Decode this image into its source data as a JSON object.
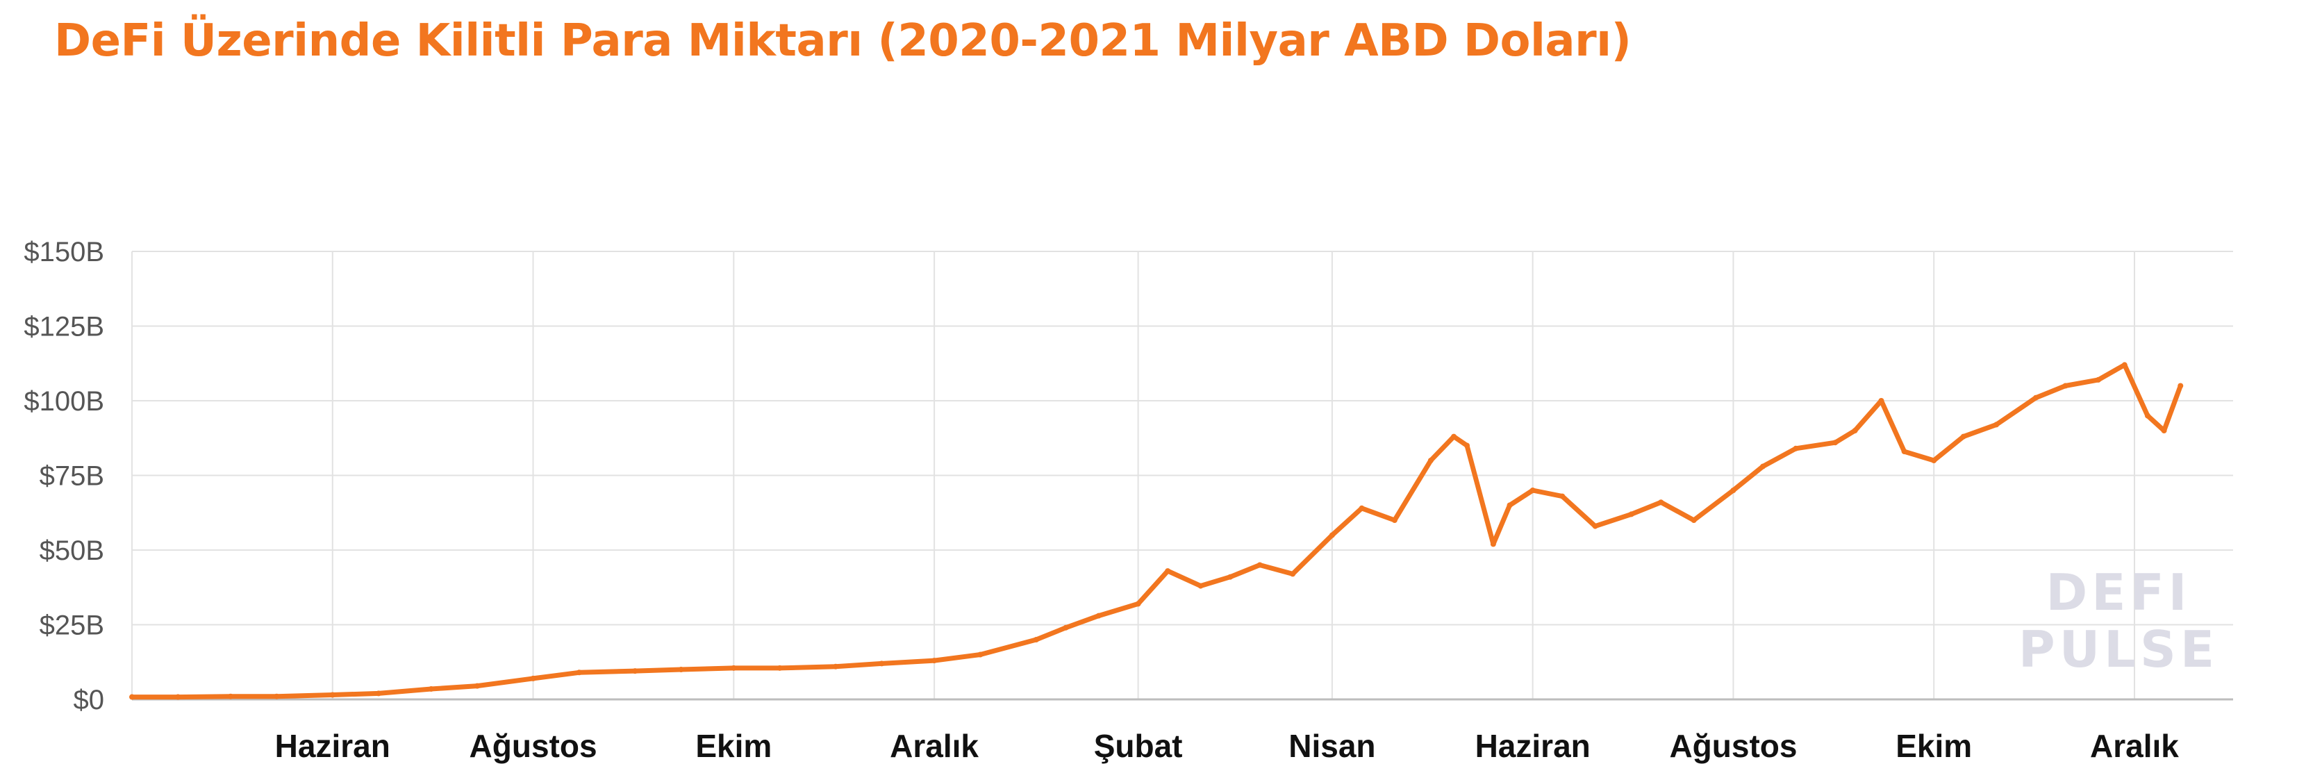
{
  "chart_data": {
    "type": "line",
    "title": "DeFi Üzerinde Kilitli Para Miktarı (2020-2021 Milyar ABD Doları)",
    "xlabel": "",
    "ylabel": "",
    "ylim": [
      0,
      150
    ],
    "xlim": [
      "2020-04-01",
      "2021-12-31"
    ],
    "y_tick_labels": [
      "$0",
      "$25B",
      "$50B",
      "$75B",
      "$100B",
      "$125B",
      "$150B"
    ],
    "y_tick_values": [
      0,
      25,
      50,
      75,
      100,
      125,
      150
    ],
    "x_tick_labels": [
      "Haziran",
      "Ağustos",
      "Ekim",
      "Aralık",
      "Şubat",
      "Nisan",
      "Haziran",
      "Ağustos",
      "Ekim",
      "Aralık"
    ],
    "x_tick_dates": [
      "2020-06-01",
      "2020-08-01",
      "2020-10-01",
      "2020-12-01",
      "2021-02-01",
      "2021-04-01",
      "2021-06-01",
      "2021-08-01",
      "2021-10-01",
      "2021-12-01"
    ],
    "grid": true,
    "line_color": "#f2761f",
    "watermark": [
      "DEFI",
      "PULSE"
    ],
    "series": [
      {
        "x": [
          "2020-04-01",
          "2020-04-15",
          "2020-05-01",
          "2020-05-15",
          "2020-06-01",
          "2020-06-15",
          "2020-07-01",
          "2020-07-15",
          "2020-08-01",
          "2020-08-15",
          "2020-09-01",
          "2020-09-15",
          "2020-10-01",
          "2020-10-15",
          "2020-11-01",
          "2020-11-15",
          "2020-12-01",
          "2020-12-15",
          "2021-01-01",
          "2021-01-10",
          "2021-01-20",
          "2021-02-01",
          "2021-02-10",
          "2021-02-20",
          "2021-03-01",
          "2021-03-10",
          "2021-03-20",
          "2021-04-01",
          "2021-04-10",
          "2021-04-20",
          "2021-05-01",
          "2021-05-08",
          "2021-05-12",
          "2021-05-20",
          "2021-05-25",
          "2021-06-01",
          "2021-06-10",
          "2021-06-20",
          "2021-07-01",
          "2021-07-10",
          "2021-07-20",
          "2021-08-01",
          "2021-08-10",
          "2021-08-20",
          "2021-09-01",
          "2021-09-07",
          "2021-09-15",
          "2021-09-22",
          "2021-10-01",
          "2021-10-10",
          "2021-10-20",
          "2021-11-01",
          "2021-11-10",
          "2021-11-20",
          "2021-11-28",
          "2021-12-05",
          "2021-12-10",
          "2021-12-15"
        ],
        "y": [
          0.8,
          0.8,
          1.0,
          1.0,
          1.5,
          2.0,
          3.5,
          4.5,
          7.0,
          9.0,
          9.5,
          10.0,
          10.5,
          10.5,
          11.0,
          12.0,
          13.0,
          15.0,
          20.0,
          24.0,
          28.0,
          32.0,
          43.0,
          38.0,
          41.0,
          45.0,
          42.0,
          55.0,
          64.0,
          60.0,
          80.0,
          88.0,
          85.0,
          52.0,
          65.0,
          70.0,
          68.0,
          58.0,
          62.0,
          66.0,
          60.0,
          70.0,
          78.0,
          84.0,
          86.0,
          90.0,
          100.0,
          83.0,
          80.0,
          88.0,
          92.0,
          101.0,
          105.0,
          107.0,
          112.0,
          95.0,
          90.0,
          105.0
        ]
      }
    ]
  }
}
